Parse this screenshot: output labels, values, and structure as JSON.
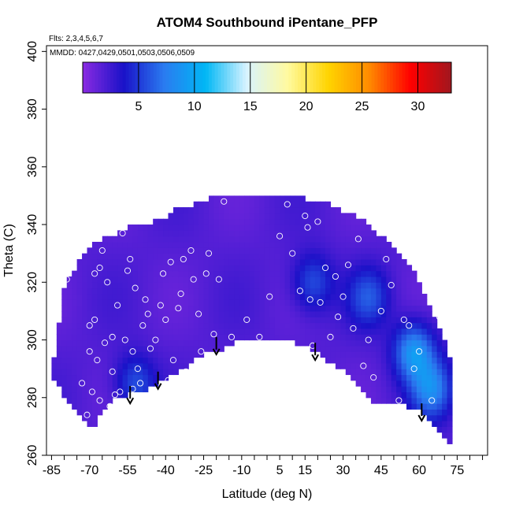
{
  "chart_data": {
    "type": "heatmap",
    "title": "ATOM4 Southbound iPentane_PFP",
    "subtitle": "Flts: 2,3,4,5,6,7",
    "annotation": "MMDD: 0427,0429,0501,0503,0506,0509",
    "xlabel": "Latitude (deg N)",
    "ylabel": "Theta (C)",
    "xlim": [
      -87,
      87
    ],
    "ylim": [
      260,
      402
    ],
    "x_ticks": [
      -85,
      -70,
      -55,
      -40,
      -25,
      -10,
      5,
      15,
      30,
      45,
      60,
      75
    ],
    "x_tick_labels": [
      "-85",
      "-70",
      "-55",
      "-40",
      "-25",
      "-10",
      "5",
      "15",
      "30",
      "45",
      "60",
      "75"
    ],
    "x_minor_step": 5,
    "y_ticks": [
      260,
      280,
      300,
      320,
      340,
      360,
      380,
      400
    ],
    "y_tick_labels": [
      "260",
      "280",
      "300",
      "320",
      "340",
      "360",
      "380",
      "400"
    ],
    "colorbar": {
      "range": [
        0,
        33
      ],
      "ticks": [
        5,
        10,
        15,
        20,
        25,
        30
      ],
      "tick_labels": [
        "5",
        "10",
        "15",
        "20",
        "25",
        "30"
      ],
      "colors": [
        "#8a2be2",
        "#1a12c8",
        "#2a7cf0",
        "#00b7f5",
        "#d8f3ff",
        "#fffaa0",
        "#ffd400",
        "#ff8a00",
        "#ff0000",
        "#a0161e"
      ]
    },
    "field_outline": {
      "lat": [
        -85,
        -82,
        -80,
        -78,
        -75,
        -72,
        -68,
        -65,
        -60,
        -55,
        -50,
        -45,
        -40,
        -35,
        -30,
        -25,
        -20,
        -15,
        -10,
        -5,
        0,
        5,
        10,
        15,
        20,
        25,
        30,
        35,
        40,
        45,
        50,
        55,
        60,
        65,
        70,
        72
      ],
      "theta_top": [
        287,
        305,
        318,
        322,
        325,
        330,
        333,
        334,
        336,
        338,
        339,
        340,
        342,
        345,
        346,
        347,
        349,
        350,
        350,
        350,
        350,
        350,
        349,
        348,
        347,
        346,
        344,
        342,
        339,
        335,
        331,
        326,
        320,
        310,
        300,
        294
      ],
      "theta_bottom": [
        287,
        284,
        281,
        278,
        275,
        272,
        270,
        276,
        280,
        282,
        283,
        285,
        287,
        290,
        293,
        296,
        297,
        299,
        301,
        301,
        301,
        301,
        300,
        299,
        296,
        293,
        290,
        286,
        281,
        278,
        278,
        278,
        277,
        272,
        266,
        265
      ]
    },
    "enhanced_regions": [
      {
        "lat": -52,
        "theta": 285,
        "value": 4
      },
      {
        "lat": 58,
        "theta": 296,
        "value": 7
      },
      {
        "lat": 65,
        "theta": 283,
        "value": 6
      },
      {
        "lat": 40,
        "theta": 315,
        "value": 4
      },
      {
        "lat": 18,
        "theta": 320,
        "value": 4
      }
    ],
    "samples": {
      "lat": [
        -79,
        -73,
        -71,
        -70,
        -70,
        -69,
        -68,
        -68,
        -67,
        -66,
        -66,
        -65,
        -64,
        -63,
        -62,
        -61,
        -61,
        -60,
        -59,
        -58,
        -57,
        -56,
        -55,
        -54,
        -53,
        -53,
        -52,
        -51,
        -50,
        -49,
        -48,
        -47,
        -46,
        -45,
        -44,
        -42,
        -41,
        -40,
        -39,
        -38,
        -37,
        -35,
        -34,
        -33,
        -32,
        -30,
        -29,
        -27,
        -26,
        -24,
        -23,
        -21,
        -19,
        -17,
        -14,
        -8,
        -3,
        1,
        5,
        8,
        10,
        13,
        15,
        16,
        17,
        18,
        20,
        21,
        23,
        25,
        27,
        28,
        30,
        32,
        34,
        36,
        38,
        40,
        42,
        45,
        47,
        49,
        52,
        54,
        56,
        58,
        60,
        62,
        65,
        68,
        70
      ],
      "theta": [
        321,
        285,
        274,
        296,
        305,
        282,
        323,
        307,
        293,
        325,
        279,
        331,
        299,
        320,
        277,
        301,
        289,
        281,
        312,
        282,
        337,
        300,
        324,
        328,
        296,
        283,
        318,
        290,
        285,
        305,
        314,
        309,
        297,
        281,
        300,
        312,
        323,
        307,
        286,
        327,
        293,
        311,
        316,
        328,
        289,
        331,
        321,
        309,
        296,
        323,
        330,
        302,
        321,
        348,
        301,
        307,
        301,
        315,
        336,
        347,
        330,
        317,
        343,
        339,
        314,
        298,
        341,
        313,
        325,
        301,
        322,
        308,
        315,
        326,
        304,
        335,
        291,
        300,
        287,
        310,
        328,
        319,
        279,
        307,
        305,
        290,
        296,
        329,
        279,
        308,
        324
      ],
      "values": [
        2,
        3,
        2,
        3,
        2,
        2,
        2,
        3,
        3,
        2,
        3,
        2,
        3,
        2,
        3,
        3,
        4,
        4,
        2,
        4,
        2,
        3,
        2,
        2,
        3,
        5,
        2,
        4,
        4,
        3,
        2,
        2,
        3,
        4,
        3,
        2,
        2,
        3,
        4,
        2,
        3,
        2,
        2,
        2,
        3,
        2,
        2,
        2,
        3,
        2,
        2,
        3,
        2,
        2,
        3,
        2,
        3,
        2,
        2,
        2,
        2,
        3,
        2,
        2,
        3,
        4,
        2,
        3,
        2,
        4,
        3,
        3,
        3,
        2,
        3,
        2,
        4,
        4,
        4,
        3,
        2,
        3,
        5,
        4,
        6,
        5,
        6,
        3,
        5,
        5,
        4
      ]
    },
    "tropopause_arrows": [
      {
        "lat": -54,
        "theta_top": 284,
        "theta_bottom": 278
      },
      {
        "lat": -43,
        "theta_top": 289,
        "theta_bottom": 283
      },
      {
        "lat": -20,
        "theta_top": 301,
        "theta_bottom": 295
      },
      {
        "lat": 19,
        "theta_top": 299,
        "theta_bottom": 293
      },
      {
        "lat": 61,
        "theta_top": 278,
        "theta_bottom": 272
      }
    ]
  }
}
